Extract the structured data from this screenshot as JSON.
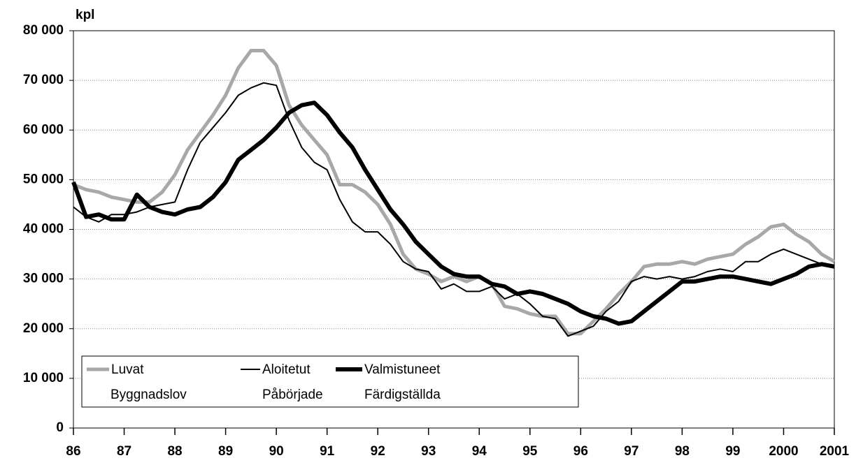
{
  "chart_data": {
    "type": "line",
    "y_label": "kpl",
    "x": [
      1986,
      1986.25,
      1986.5,
      1986.75,
      1987,
      1987.25,
      1987.5,
      1987.75,
      1988,
      1988.25,
      1988.5,
      1988.75,
      1989,
      1989.25,
      1989.5,
      1989.75,
      1990,
      1990.25,
      1990.5,
      1990.75,
      1991,
      1991.25,
      1991.5,
      1991.75,
      1992,
      1992.25,
      1992.5,
      1992.75,
      1993,
      1993.25,
      1993.5,
      1993.75,
      1994,
      1994.25,
      1994.5,
      1994.75,
      1995,
      1995.25,
      1995.5,
      1995.75,
      1996,
      1996.25,
      1996.5,
      1996.75,
      1997,
      1997.25,
      1997.5,
      1997.75,
      1998,
      1998.25,
      1998.5,
      1998.75,
      1999,
      1999.25,
      1999.5,
      1999.75,
      2000,
      2000.25,
      2000.5,
      2000.75,
      2001
    ],
    "series": [
      {
        "name": "Luvat",
        "subname": "Byggnadslov",
        "color": "#a8a8a8",
        "width": 5,
        "values": [
          49000,
          48000,
          47500,
          46500,
          46000,
          45500,
          45500,
          47500,
          51000,
          56000,
          59500,
          63000,
          67000,
          72500,
          76000,
          76000,
          73000,
          65000,
          61000,
          58000,
          55000,
          49000,
          49000,
          47500,
          45000,
          41000,
          35000,
          32000,
          31000,
          29500,
          30500,
          29500,
          30500,
          29000,
          24500,
          24000,
          23000,
          22500,
          22500,
          19000,
          19000,
          21500,
          24000,
          27000,
          29500,
          32500,
          33000,
          33000,
          33500,
          33000,
          34000,
          34500,
          35000,
          37000,
          38500,
          40500,
          41000,
          39000,
          37500,
          35000,
          33500
        ]
      },
      {
        "name": "Aloitetut",
        "subname": "Påbörjade",
        "color": "#000000",
        "width": 2,
        "values": [
          44500,
          42500,
          41500,
          43000,
          43000,
          43500,
          44500,
          45000,
          45500,
          52000,
          57500,
          60500,
          63500,
          67000,
          68500,
          69500,
          69000,
          62000,
          56500,
          53500,
          52000,
          46000,
          41500,
          39500,
          39500,
          37000,
          33500,
          32000,
          31500,
          28000,
          29000,
          27500,
          27500,
          28500,
          26000,
          27000,
          25000,
          22500,
          22000,
          18500,
          19500,
          20500,
          23500,
          25500,
          29500,
          30500,
          30000,
          30500,
          30000,
          30500,
          31500,
          32000,
          31500,
          33500,
          33500,
          35000,
          36000,
          35000,
          34000,
          33000,
          32500
        ]
      },
      {
        "name": "Valmistuneet",
        "subname": "Färdigställda",
        "color": "#000000",
        "width": 6,
        "values": [
          49500,
          42500,
          43000,
          42000,
          42000,
          47000,
          44500,
          43500,
          43000,
          44000,
          44500,
          46500,
          49500,
          54000,
          56000,
          58000,
          60500,
          63500,
          65000,
          65500,
          63000,
          59500,
          56500,
          52000,
          48000,
          44000,
          41000,
          37500,
          35000,
          32500,
          31000,
          30500,
          30500,
          29000,
          28500,
          27000,
          27500,
          27000,
          26000,
          25000,
          23500,
          22500,
          22000,
          21000,
          21500,
          23500,
          25500,
          27500,
          29500,
          29500,
          30000,
          30500,
          30500,
          30000,
          29500,
          29000,
          30000,
          31000,
          32500,
          33000,
          32500
        ]
      }
    ],
    "xlim": [
      1986,
      2001
    ],
    "xticks": [
      {
        "value": 1986,
        "label": "86"
      },
      {
        "value": 1987,
        "label": "87"
      },
      {
        "value": 1988,
        "label": "88"
      },
      {
        "value": 1989,
        "label": "89"
      },
      {
        "value": 1990,
        "label": "90"
      },
      {
        "value": 1991,
        "label": "91"
      },
      {
        "value": 1992,
        "label": "92"
      },
      {
        "value": 1993,
        "label": "93"
      },
      {
        "value": 1994,
        "label": "94"
      },
      {
        "value": 1995,
        "label": "95"
      },
      {
        "value": 1996,
        "label": "96"
      },
      {
        "value": 1997,
        "label": "97"
      },
      {
        "value": 1998,
        "label": "98"
      },
      {
        "value": 1999,
        "label": "99"
      },
      2000,
      2001
    ],
    "ylim": [
      0,
      80000
    ],
    "yticks": [
      0,
      {
        "value": 10000,
        "label": "10 000"
      },
      {
        "value": 20000,
        "label": "20 000"
      },
      {
        "value": 30000,
        "label": "30 000"
      },
      {
        "value": 40000,
        "label": "40 000"
      },
      {
        "value": 50000,
        "label": "50 000"
      },
      {
        "value": 60000,
        "label": "60 000"
      },
      {
        "value": 70000,
        "label": "70 000"
      },
      {
        "value": 80000,
        "label": "80 000"
      }
    ],
    "grid": true,
    "legend": "lower left"
  }
}
